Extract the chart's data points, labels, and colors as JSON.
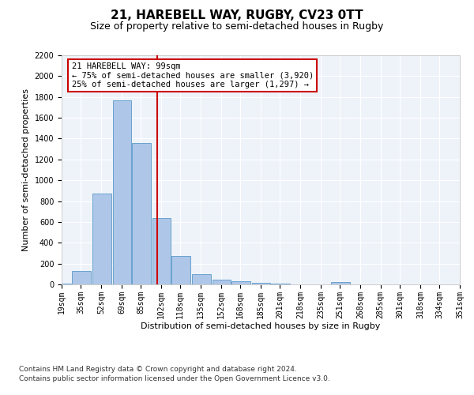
{
  "title": "21, HAREBELL WAY, RUGBY, CV23 0TT",
  "subtitle": "Size of property relative to semi-detached houses in Rugby",
  "xlabel": "Distribution of semi-detached houses by size in Rugby",
  "ylabel": "Number of semi-detached properties",
  "footer1": "Contains HM Land Registry data © Crown copyright and database right 2024.",
  "footer2": "Contains public sector information licensed under the Open Government Licence v3.0.",
  "annotation_title": "21 HAREBELL WAY: 99sqm",
  "annotation_line1": "← 75% of semi-detached houses are smaller (3,920)",
  "annotation_line2": "25% of semi-detached houses are larger (1,297) →",
  "property_size": 99,
  "bar_color": "#aec6e8",
  "bar_edge_color": "#5a9ac8",
  "vline_color": "#cc0000",
  "vline_x": 99,
  "bins": [
    19,
    35,
    52,
    69,
    85,
    102,
    118,
    135,
    152,
    168,
    185,
    201,
    218,
    235,
    251,
    268,
    285,
    301,
    318,
    334,
    351
  ],
  "counts": [
    10,
    130,
    870,
    1770,
    1360,
    640,
    270,
    100,
    45,
    30,
    15,
    5,
    0,
    0,
    20,
    0,
    0,
    0,
    0,
    0
  ],
  "ylim": [
    0,
    2200
  ],
  "yticks": [
    0,
    200,
    400,
    600,
    800,
    1000,
    1200,
    1400,
    1600,
    1800,
    2000,
    2200
  ],
  "bg_color": "#eef3fa",
  "annotation_box_color": "white",
  "annotation_box_edge": "#cc0000",
  "grid_color": "#ffffff",
  "title_fontsize": 11,
  "subtitle_fontsize": 9,
  "axis_label_fontsize": 8,
  "tick_fontsize": 7,
  "annotation_fontsize": 7.5
}
